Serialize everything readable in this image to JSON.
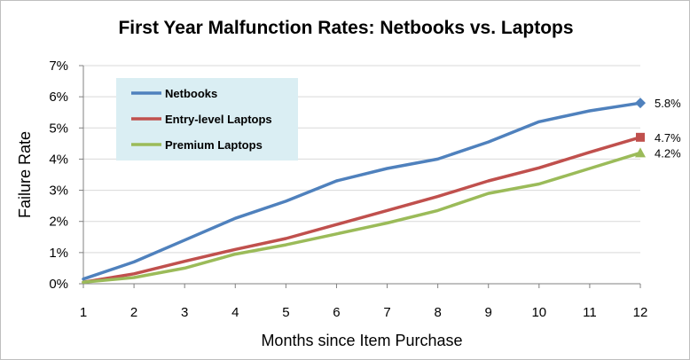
{
  "chart_data": {
    "type": "line",
    "title": "First Year Malfunction Rates: Netbooks vs. Laptops",
    "xlabel": "Months since Item Purchase",
    "ylabel": "Failure Rate",
    "x": [
      1,
      2,
      3,
      4,
      5,
      6,
      7,
      8,
      9,
      10,
      11,
      12
    ],
    "x_tick_labels": [
      "1",
      "2",
      "3",
      "4",
      "5",
      "6",
      "7",
      "8",
      "9",
      "10",
      "11",
      "12"
    ],
    "ylim": [
      0,
      7
    ],
    "y_ticks": [
      0,
      1,
      2,
      3,
      4,
      5,
      6,
      7
    ],
    "y_tick_labels": [
      "0%",
      "1%",
      "2%",
      "3%",
      "4%",
      "5%",
      "6%",
      "7%"
    ],
    "grid": "horizontal",
    "legend_position": "top-left",
    "series": [
      {
        "name": "Netbooks",
        "color": "#4F81BD",
        "marker": "diamond",
        "values": [
          0.15,
          0.7,
          1.4,
          2.1,
          2.65,
          3.3,
          3.7,
          4.0,
          4.55,
          5.2,
          5.55,
          5.8
        ],
        "end_label": "5.8%"
      },
      {
        "name": "Entry-level Laptops",
        "color": "#C0504D",
        "marker": "square",
        "values": [
          0.05,
          0.32,
          0.72,
          1.1,
          1.45,
          1.9,
          2.35,
          2.8,
          3.3,
          3.72,
          4.22,
          4.7
        ],
        "end_label": "4.7%"
      },
      {
        "name": "Premium Laptops",
        "color": "#9BBB59",
        "marker": "triangle",
        "values": [
          0.05,
          0.2,
          0.5,
          0.95,
          1.25,
          1.6,
          1.95,
          2.35,
          2.9,
          3.2,
          3.7,
          4.2
        ],
        "end_label": "4.2%"
      }
    ],
    "legend_background": "#DAEEF3",
    "gridline_color": "#D9D9D9"
  }
}
